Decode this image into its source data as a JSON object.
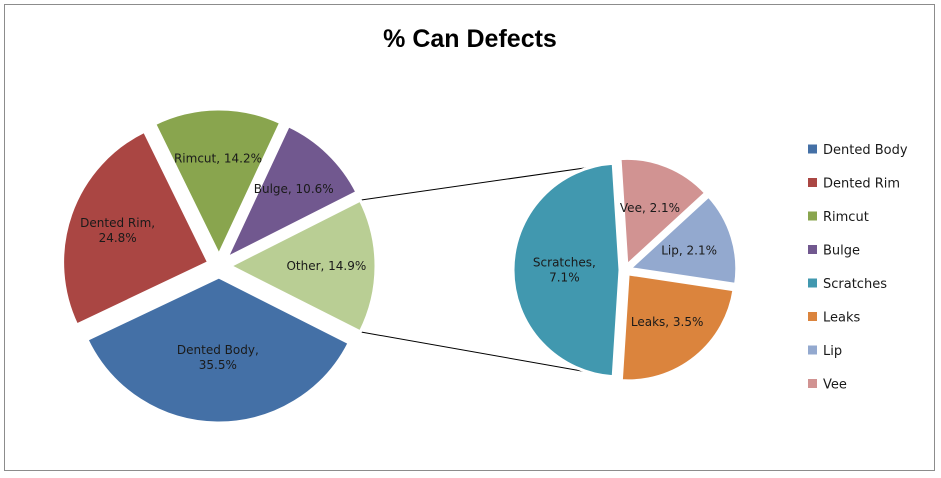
{
  "chart_data": {
    "type": "pie",
    "subtype": "pie-of-pie",
    "title": "% Can Defects",
    "unit": "%",
    "legend_position": "right",
    "primary": {
      "slices": [
        {
          "name": "Dented Body",
          "value": 35.5,
          "label": "Dented Body, 35.5%",
          "color": "#4470A6"
        },
        {
          "name": "Dented Rim",
          "value": 24.8,
          "label": "Dented Rim, 24.8%",
          "color": "#AA4643"
        },
        {
          "name": "Rimcut",
          "value": 14.2,
          "label": "Rimcut, 14.2%",
          "color": "#89A54E"
        },
        {
          "name": "Bulge",
          "value": 10.6,
          "label": "Bulge, 10.6%",
          "color": "#71588F"
        },
        {
          "name": "Other",
          "value": 14.9,
          "label": "Other, 14.9%",
          "color": "#B9CE94"
        }
      ]
    },
    "secondary": {
      "parent": "Other",
      "slices": [
        {
          "name": "Scratches",
          "value": 7.1,
          "label": "Scratches, 7.1%",
          "color": "#4198AF"
        },
        {
          "name": "Leaks",
          "value": 3.5,
          "label": "Leaks, 3.5%",
          "color": "#DB843D"
        },
        {
          "name": "Lip",
          "value": 2.1,
          "label": "Lip, 2.1%",
          "color": "#93A9CF"
        },
        {
          "name": "Vee",
          "value": 2.1,
          "label": "Vee, 2.1%",
          "color": "#D19392"
        }
      ]
    },
    "legend": [
      {
        "name": "Dented Body",
        "color": "#4470A6"
      },
      {
        "name": "Dented Rim",
        "color": "#AA4643"
      },
      {
        "name": "Rimcut",
        "color": "#89A54E"
      },
      {
        "name": "Bulge",
        "color": "#71588F"
      },
      {
        "name": "Scratches",
        "color": "#4198AF"
      },
      {
        "name": "Leaks",
        "color": "#DB843D"
      },
      {
        "name": "Lip",
        "color": "#93A9CF"
      },
      {
        "name": "Vee",
        "color": "#D19392"
      }
    ]
  }
}
